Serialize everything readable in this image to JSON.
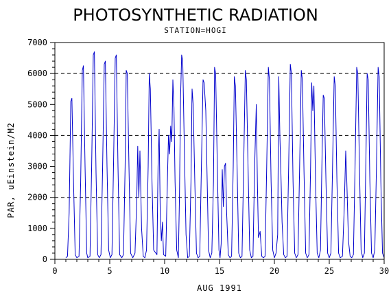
{
  "chart_data": {
    "type": "line",
    "title": "PHOTOSYNTHETIC RADIATION",
    "subtitle": "STATION=HOGI",
    "xlabel": "AUG 1991",
    "ylabel": "PAR, uEinstein/M2",
    "xlim": [
      0,
      30
    ],
    "ylim": [
      0,
      7000
    ],
    "xticks": [
      0,
      5,
      10,
      15,
      20,
      25,
      30
    ],
    "yticks": [
      0,
      1000,
      2000,
      3000,
      4000,
      5000,
      6000,
      7000
    ],
    "reference_lines_y": [
      2000,
      4000,
      6000
    ],
    "line_color": "#0000cc",
    "series": [
      {
        "values": [
          [
            1.0,
            50
          ],
          [
            1.15,
            100
          ],
          [
            1.3,
            1500
          ],
          [
            1.45,
            5100
          ],
          [
            1.55,
            5200
          ],
          [
            1.7,
            2500
          ],
          [
            1.85,
            150
          ],
          [
            2.0,
            50
          ],
          [
            2.2,
            100
          ],
          [
            2.35,
            2500
          ],
          [
            2.5,
            6100
          ],
          [
            2.6,
            6250
          ],
          [
            2.75,
            3000
          ],
          [
            2.9,
            200
          ],
          [
            3.0,
            50
          ],
          [
            3.2,
            100
          ],
          [
            3.35,
            3000
          ],
          [
            3.5,
            6600
          ],
          [
            3.6,
            6700
          ],
          [
            3.75,
            2800
          ],
          [
            3.9,
            150
          ],
          [
            4.05,
            50
          ],
          [
            4.2,
            150
          ],
          [
            4.35,
            3000
          ],
          [
            4.5,
            6300
          ],
          [
            4.6,
            6400
          ],
          [
            4.75,
            3000
          ],
          [
            4.9,
            300
          ],
          [
            5.05,
            50
          ],
          [
            5.2,
            150
          ],
          [
            5.35,
            3200
          ],
          [
            5.5,
            6500
          ],
          [
            5.6,
            6600
          ],
          [
            5.75,
            3000
          ],
          [
            5.9,
            150
          ],
          [
            6.1,
            50
          ],
          [
            6.25,
            150
          ],
          [
            6.4,
            3000
          ],
          [
            6.5,
            6100
          ],
          [
            6.6,
            6000
          ],
          [
            6.75,
            3000
          ],
          [
            6.9,
            200
          ],
          [
            7.1,
            50
          ],
          [
            7.3,
            200
          ],
          [
            7.45,
            1800
          ],
          [
            7.55,
            3650
          ],
          [
            7.65,
            2000
          ],
          [
            7.75,
            3500
          ],
          [
            7.9,
            1000
          ],
          [
            8.05,
            100
          ],
          [
            8.2,
            50
          ],
          [
            8.35,
            300
          ],
          [
            8.5,
            3000
          ],
          [
            8.6,
            6000
          ],
          [
            8.7,
            5500
          ],
          [
            8.85,
            2500
          ],
          [
            9.0,
            300
          ],
          [
            9.3,
            150
          ],
          [
            9.4,
            3000
          ],
          [
            9.5,
            4200
          ],
          [
            9.6,
            1500
          ],
          [
            9.7,
            600
          ],
          [
            9.8,
            1200
          ],
          [
            9.9,
            150
          ],
          [
            10.1,
            100
          ],
          [
            10.25,
            2500
          ],
          [
            10.35,
            4000
          ],
          [
            10.45,
            3400
          ],
          [
            10.55,
            4300
          ],
          [
            10.65,
            3800
          ],
          [
            10.75,
            5800
          ],
          [
            10.85,
            4900
          ],
          [
            10.95,
            2500
          ],
          [
            11.1,
            300
          ],
          [
            11.25,
            50
          ],
          [
            11.35,
            2000
          ],
          [
            11.45,
            5200
          ],
          [
            11.55,
            6600
          ],
          [
            11.65,
            6400
          ],
          [
            11.8,
            3500
          ],
          [
            11.95,
            800
          ],
          [
            12.1,
            50
          ],
          [
            12.25,
            100
          ],
          [
            12.4,
            2500
          ],
          [
            12.5,
            5500
          ],
          [
            12.6,
            5000
          ],
          [
            12.75,
            2500
          ],
          [
            12.9,
            200
          ],
          [
            13.05,
            50
          ],
          [
            13.2,
            100
          ],
          [
            13.35,
            3000
          ],
          [
            13.5,
            5800
          ],
          [
            13.6,
            5700
          ],
          [
            13.75,
            4800
          ],
          [
            13.85,
            3000
          ],
          [
            14.0,
            300
          ],
          [
            14.15,
            50
          ],
          [
            14.3,
            200
          ],
          [
            14.45,
            2500
          ],
          [
            14.55,
            6200
          ],
          [
            14.65,
            6000
          ],
          [
            14.8,
            3000
          ],
          [
            14.95,
            300
          ],
          [
            15.05,
            50
          ],
          [
            15.15,
            500
          ],
          [
            15.25,
            2900
          ],
          [
            15.35,
            1700
          ],
          [
            15.45,
            3000
          ],
          [
            15.55,
            3100
          ],
          [
            15.65,
            1500
          ],
          [
            15.8,
            150
          ],
          [
            15.95,
            50
          ],
          [
            16.1,
            100
          ],
          [
            16.25,
            3000
          ],
          [
            16.35,
            5900
          ],
          [
            16.45,
            5600
          ],
          [
            16.6,
            3000
          ],
          [
            16.75,
            200
          ],
          [
            16.9,
            50
          ],
          [
            17.05,
            100
          ],
          [
            17.2,
            3000
          ],
          [
            17.35,
            6100
          ],
          [
            17.45,
            5800
          ],
          [
            17.6,
            3000
          ],
          [
            17.75,
            300
          ],
          [
            17.9,
            50
          ],
          [
            18.05,
            100
          ],
          [
            18.2,
            3000
          ],
          [
            18.35,
            5000
          ],
          [
            18.45,
            2500
          ],
          [
            18.55,
            700
          ],
          [
            18.7,
            900
          ],
          [
            18.85,
            100
          ],
          [
            19.0,
            50
          ],
          [
            19.15,
            100
          ],
          [
            19.3,
            3000
          ],
          [
            19.45,
            6200
          ],
          [
            19.55,
            5800
          ],
          [
            19.7,
            2500
          ],
          [
            19.85,
            300
          ],
          [
            20.0,
            50
          ],
          [
            20.15,
            200
          ],
          [
            20.3,
            800
          ],
          [
            20.4,
            5900
          ],
          [
            20.5,
            4000
          ],
          [
            20.6,
            2700
          ],
          [
            20.7,
            1200
          ],
          [
            20.85,
            150
          ],
          [
            21.0,
            50
          ],
          [
            21.15,
            100
          ],
          [
            21.3,
            3000
          ],
          [
            21.45,
            6300
          ],
          [
            21.55,
            6000
          ],
          [
            21.7,
            2500
          ],
          [
            21.85,
            200
          ],
          [
            22.0,
            50
          ],
          [
            22.15,
            150
          ],
          [
            22.3,
            3000
          ],
          [
            22.45,
            6100
          ],
          [
            22.55,
            5800
          ],
          [
            22.7,
            2800
          ],
          [
            22.85,
            200
          ],
          [
            23.0,
            50
          ],
          [
            23.15,
            150
          ],
          [
            23.3,
            3000
          ],
          [
            23.4,
            5700
          ],
          [
            23.5,
            4800
          ],
          [
            23.6,
            5600
          ],
          [
            23.75,
            2500
          ],
          [
            23.9,
            200
          ],
          [
            24.05,
            50
          ],
          [
            24.2,
            300
          ],
          [
            24.35,
            3500
          ],
          [
            24.45,
            5300
          ],
          [
            24.55,
            5200
          ],
          [
            24.7,
            2500
          ],
          [
            24.85,
            200
          ],
          [
            25.0,
            50
          ],
          [
            25.15,
            200
          ],
          [
            25.3,
            3000
          ],
          [
            25.45,
            5900
          ],
          [
            25.55,
            5600
          ],
          [
            25.7,
            2500
          ],
          [
            25.85,
            200
          ],
          [
            26.0,
            50
          ],
          [
            26.2,
            100
          ],
          [
            26.35,
            1500
          ],
          [
            26.5,
            3500
          ],
          [
            26.6,
            2500
          ],
          [
            26.75,
            600
          ],
          [
            26.9,
            100
          ],
          [
            27.05,
            50
          ],
          [
            27.2,
            150
          ],
          [
            27.35,
            3000
          ],
          [
            27.5,
            6200
          ],
          [
            27.6,
            6000
          ],
          [
            27.75,
            3000
          ],
          [
            27.9,
            300
          ],
          [
            28.05,
            50
          ],
          [
            28.2,
            200
          ],
          [
            28.35,
            3500
          ],
          [
            28.45,
            6000
          ],
          [
            28.55,
            5800
          ],
          [
            28.7,
            2500
          ],
          [
            28.85,
            200
          ],
          [
            29.0,
            50
          ],
          [
            29.15,
            300
          ],
          [
            29.3,
            3000
          ],
          [
            29.45,
            6200
          ],
          [
            29.55,
            5900
          ],
          [
            29.7,
            2500
          ],
          [
            29.85,
            200
          ],
          [
            30.0,
            50
          ]
        ]
      }
    ]
  }
}
